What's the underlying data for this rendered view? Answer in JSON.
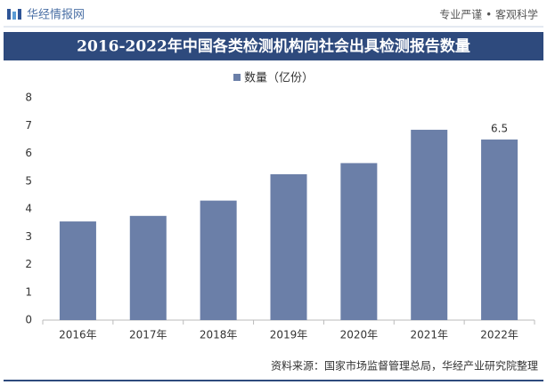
{
  "header": {
    "brand": "华经情报网",
    "slogan": "专业严谨 • 客观科学"
  },
  "chart_data": {
    "type": "bar",
    "title": "2016-2022年中国各类检测机构向社会出具检测报告数量",
    "categories": [
      "2016年",
      "2017年",
      "2018年",
      "2019年",
      "2020年",
      "2021年",
      "2022年"
    ],
    "series": [
      {
        "name": "数量（亿份）",
        "color": "#6b7fa8",
        "values": [
          3.55,
          3.75,
          4.3,
          5.25,
          5.65,
          6.85,
          6.5
        ]
      }
    ],
    "value_labels": [
      null,
      null,
      null,
      null,
      null,
      null,
      "6.5"
    ],
    "ylim": [
      0,
      8
    ],
    "yticks": [
      0,
      1,
      2,
      3,
      4,
      5,
      6,
      7,
      8
    ],
    "grid": false,
    "legend": "top"
  },
  "source": "资料来源：国家市场监督管理总局，华经产业研究院整理"
}
